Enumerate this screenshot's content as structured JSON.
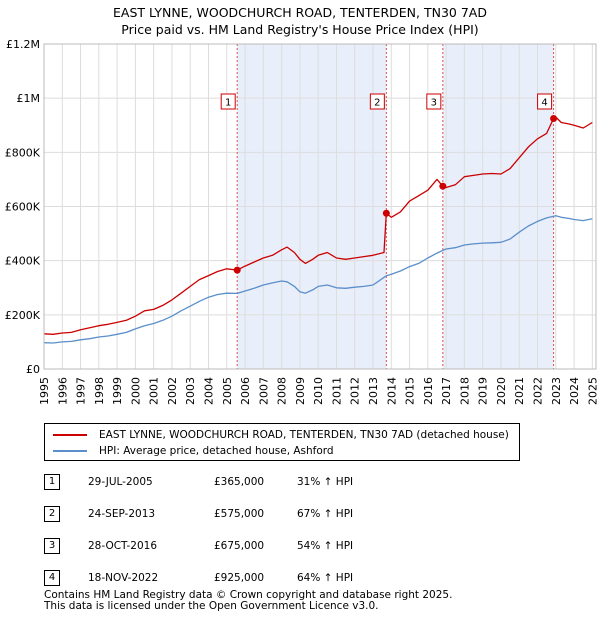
{
  "header": {
    "title_line1": "EAST LYNNE, WOODCHURCH ROAD, TENTERDEN, TN30 7AD",
    "title_line2": "Price paid vs. HM Land Registry's House Price Index (HPI)"
  },
  "chart_data": {
    "type": "line",
    "title": "EAST LYNNE, WOODCHURCH ROAD, TENTERDEN, TN30 7AD — Price paid vs. HM Land Registry's House Price Index (HPI)",
    "xlim": [
      1995,
      2025.2
    ],
    "ylim": [
      0,
      1200000
    ],
    "yticks": [
      {
        "value": 0,
        "label": "£0"
      },
      {
        "value": 200000,
        "label": "£200K"
      },
      {
        "value": 400000,
        "label": "£400K"
      },
      {
        "value": 600000,
        "label": "£600K"
      },
      {
        "value": 800000,
        "label": "£800K"
      },
      {
        "value": 1000000,
        "label": "£1M"
      },
      {
        "value": 1200000,
        "label": "£1.2M"
      }
    ],
    "xticks": [
      "1995",
      "1996",
      "1997",
      "1998",
      "1999",
      "2000",
      "2001",
      "2002",
      "2003",
      "2004",
      "2005",
      "2006",
      "2007",
      "2008",
      "2009",
      "2010",
      "2011",
      "2012",
      "2013",
      "2014",
      "2015",
      "2016",
      "2017",
      "2018",
      "2019",
      "2020",
      "2021",
      "2022",
      "2023",
      "2024",
      "2025"
    ],
    "grid": true,
    "colors": {
      "property": "#cc0000",
      "hpi": "#5b8fc9",
      "shade": "#e8eefa",
      "marker_line": "#e05050"
    },
    "shaded_ranges": [
      [
        2005.57,
        2013.73
      ],
      [
        2016.82,
        2022.88
      ]
    ],
    "series": [
      {
        "name": "EAST LYNNE, WOODCHURCH ROAD, TENTERDEN, TN30 7AD (detached house)",
        "points": [
          [
            1995.0,
            130000
          ],
          [
            1995.5,
            128000
          ],
          [
            1996.0,
            133000
          ],
          [
            1996.5,
            135000
          ],
          [
            1997.0,
            145000
          ],
          [
            1997.5,
            152000
          ],
          [
            1998.0,
            160000
          ],
          [
            1998.5,
            165000
          ],
          [
            1999.0,
            172000
          ],
          [
            1999.5,
            180000
          ],
          [
            2000.0,
            195000
          ],
          [
            2000.5,
            215000
          ],
          [
            2001.0,
            220000
          ],
          [
            2001.5,
            235000
          ],
          [
            2002.0,
            255000
          ],
          [
            2002.5,
            280000
          ],
          [
            2003.0,
            305000
          ],
          [
            2003.5,
            330000
          ],
          [
            2004.0,
            345000
          ],
          [
            2004.5,
            360000
          ],
          [
            2005.0,
            370000
          ],
          [
            2005.57,
            365000
          ],
          [
            2006.0,
            380000
          ],
          [
            2006.5,
            395000
          ],
          [
            2007.0,
            410000
          ],
          [
            2007.5,
            420000
          ],
          [
            2008.0,
            440000
          ],
          [
            2008.3,
            450000
          ],
          [
            2008.7,
            430000
          ],
          [
            2009.0,
            405000
          ],
          [
            2009.3,
            390000
          ],
          [
            2009.7,
            405000
          ],
          [
            2010.0,
            420000
          ],
          [
            2010.5,
            430000
          ],
          [
            2011.0,
            410000
          ],
          [
            2011.5,
            405000
          ],
          [
            2012.0,
            410000
          ],
          [
            2012.5,
            415000
          ],
          [
            2013.0,
            420000
          ],
          [
            2013.6,
            430000
          ],
          [
            2013.73,
            575000
          ],
          [
            2014.0,
            560000
          ],
          [
            2014.5,
            580000
          ],
          [
            2015.0,
            620000
          ],
          [
            2015.5,
            640000
          ],
          [
            2016.0,
            660000
          ],
          [
            2016.5,
            700000
          ],
          [
            2016.82,
            675000
          ],
          [
            2017.0,
            670000
          ],
          [
            2017.5,
            680000
          ],
          [
            2018.0,
            710000
          ],
          [
            2018.5,
            715000
          ],
          [
            2019.0,
            720000
          ],
          [
            2019.5,
            722000
          ],
          [
            2020.0,
            720000
          ],
          [
            2020.5,
            740000
          ],
          [
            2021.0,
            780000
          ],
          [
            2021.5,
            820000
          ],
          [
            2022.0,
            850000
          ],
          [
            2022.5,
            870000
          ],
          [
            2022.88,
            925000
          ],
          [
            2023.0,
            930000
          ],
          [
            2023.3,
            910000
          ],
          [
            2023.7,
            905000
          ],
          [
            2024.0,
            900000
          ],
          [
            2024.5,
            890000
          ],
          [
            2025.0,
            910000
          ]
        ]
      },
      {
        "name": "HPI: Average price, detached house, Ashford",
        "points": [
          [
            1995.0,
            97000
          ],
          [
            1995.5,
            96000
          ],
          [
            1996.0,
            100000
          ],
          [
            1996.5,
            102000
          ],
          [
            1997.0,
            108000
          ],
          [
            1997.5,
            112000
          ],
          [
            1998.0,
            118000
          ],
          [
            1998.5,
            122000
          ],
          [
            1999.0,
            128000
          ],
          [
            1999.5,
            135000
          ],
          [
            2000.0,
            148000
          ],
          [
            2000.5,
            160000
          ],
          [
            2001.0,
            168000
          ],
          [
            2001.5,
            180000
          ],
          [
            2002.0,
            195000
          ],
          [
            2002.5,
            215000
          ],
          [
            2003.0,
            232000
          ],
          [
            2003.5,
            250000
          ],
          [
            2004.0,
            265000
          ],
          [
            2004.5,
            275000
          ],
          [
            2005.0,
            280000
          ],
          [
            2005.57,
            279000
          ],
          [
            2006.0,
            288000
          ],
          [
            2006.5,
            298000
          ],
          [
            2007.0,
            310000
          ],
          [
            2007.5,
            318000
          ],
          [
            2008.0,
            325000
          ],
          [
            2008.3,
            322000
          ],
          [
            2008.7,
            305000
          ],
          [
            2009.0,
            285000
          ],
          [
            2009.3,
            280000
          ],
          [
            2009.7,
            292000
          ],
          [
            2010.0,
            305000
          ],
          [
            2010.5,
            310000
          ],
          [
            2011.0,
            300000
          ],
          [
            2011.5,
            298000
          ],
          [
            2012.0,
            302000
          ],
          [
            2012.5,
            305000
          ],
          [
            2013.0,
            310000
          ],
          [
            2013.73,
            344000
          ],
          [
            2014.0,
            350000
          ],
          [
            2014.5,
            362000
          ],
          [
            2015.0,
            378000
          ],
          [
            2015.5,
            390000
          ],
          [
            2016.0,
            410000
          ],
          [
            2016.5,
            428000
          ],
          [
            2016.82,
            438000
          ],
          [
            2017.0,
            443000
          ],
          [
            2017.5,
            448000
          ],
          [
            2018.0,
            458000
          ],
          [
            2018.5,
            462000
          ],
          [
            2019.0,
            465000
          ],
          [
            2019.5,
            466000
          ],
          [
            2020.0,
            468000
          ],
          [
            2020.5,
            480000
          ],
          [
            2021.0,
            505000
          ],
          [
            2021.5,
            528000
          ],
          [
            2022.0,
            545000
          ],
          [
            2022.5,
            558000
          ],
          [
            2022.88,
            564000
          ],
          [
            2023.0,
            566000
          ],
          [
            2023.3,
            560000
          ],
          [
            2023.7,
            556000
          ],
          [
            2024.0,
            552000
          ],
          [
            2024.5,
            548000
          ],
          [
            2025.0,
            555000
          ]
        ]
      }
    ],
    "sales": [
      {
        "num": "1",
        "x": 2005.57,
        "price": 365000
      },
      {
        "num": "2",
        "x": 2013.73,
        "price": 575000
      },
      {
        "num": "3",
        "x": 2016.82,
        "price": 675000
      },
      {
        "num": "4",
        "x": 2022.88,
        "price": 925000
      }
    ]
  },
  "legend": {
    "items": [
      {
        "label": "EAST LYNNE, WOODCHURCH ROAD, TENTERDEN, TN30 7AD (detached house)",
        "color": "#cc0000"
      },
      {
        "label": "HPI: Average price, detached house, Ashford",
        "color": "#5b8fc9"
      }
    ]
  },
  "sales_table": [
    {
      "num": "1",
      "date": "29-JUL-2005",
      "price": "£365,000",
      "hpi": "31% ↑ HPI"
    },
    {
      "num": "2",
      "date": "24-SEP-2013",
      "price": "£575,000",
      "hpi": "67% ↑ HPI"
    },
    {
      "num": "3",
      "date": "28-OCT-2016",
      "price": "£675,000",
      "hpi": "54% ↑ HPI"
    },
    {
      "num": "4",
      "date": "18-NOV-2022",
      "price": "£925,000",
      "hpi": "64% ↑ HPI"
    }
  ],
  "footer": {
    "line1": "Contains HM Land Registry data © Crown copyright and database right 2025.",
    "line2": "This data is licensed under the Open Government Licence v3.0."
  }
}
